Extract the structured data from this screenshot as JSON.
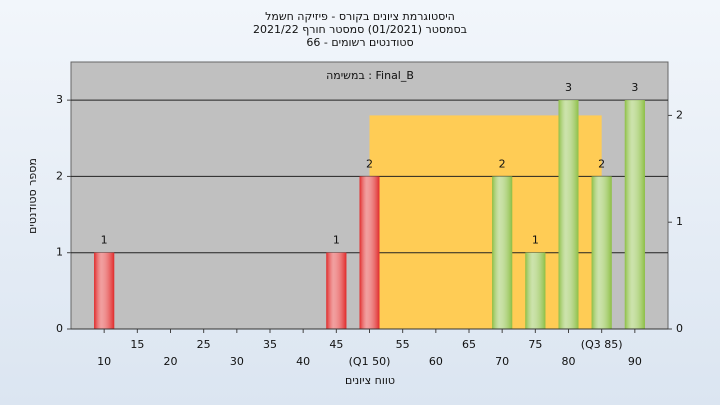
{
  "chart_data": {
    "type": "bar",
    "title": [
      "היסטוגרמת ציונים בקורס - פיזיקה חשמל",
      "בסמסטר (01/2021) סמסטר חורף 2021/22",
      "סטודנטים רשומים - 66"
    ],
    "annotation": "במשימה : Final_B",
    "x_label": "טווח ציונים",
    "y_label": "מספר סטודנטים",
    "x": [
      10,
      45,
      50,
      70,
      75,
      80,
      85,
      90
    ],
    "values": [
      1,
      1,
      2,
      2,
      1,
      3,
      2,
      3
    ],
    "colors": [
      "#e02a2a",
      "#e02a2a",
      "#e02a2a",
      "#8dbf45",
      "#8dbf45",
      "#8dbf45",
      "#8dbf45",
      "#8dbf45"
    ],
    "quartile_band": {
      "x": [
        50,
        85
      ],
      "y2": 2,
      "color": "#ffcc55"
    },
    "xlim": [
      5,
      95
    ],
    "xticks": [
      10,
      15,
      20,
      25,
      30,
      35,
      40,
      45,
      {
        "value": 50,
        "label": "(Q1 50)"
      },
      55,
      60,
      65,
      70,
      75,
      80,
      {
        "value": 85,
        "label": "(Q3 85)"
      },
      90
    ],
    "ylim": [
      0,
      3.5
    ],
    "yticks": [
      0,
      1,
      2,
      3
    ],
    "y2lim": [
      0,
      2.5
    ],
    "y2ticks": [
      0,
      1,
      2
    ],
    "grid": true
  }
}
